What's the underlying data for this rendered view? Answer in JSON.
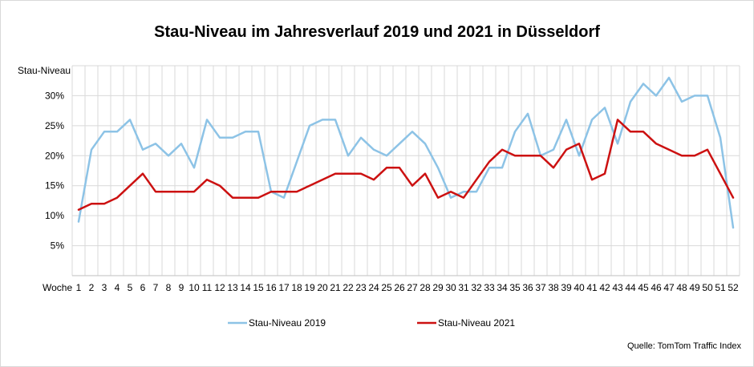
{
  "chart_data": {
    "type": "line",
    "title": "Stau-Niveau im Jahresverlauf 2019 und 2021 in Düsseldorf",
    "ylabel": "Stau-Niveau",
    "xlabel": "Woche",
    "x": [
      1,
      2,
      3,
      4,
      5,
      6,
      7,
      8,
      9,
      10,
      11,
      12,
      13,
      14,
      15,
      16,
      17,
      18,
      19,
      20,
      21,
      22,
      23,
      24,
      25,
      26,
      27,
      28,
      29,
      30,
      31,
      32,
      33,
      34,
      35,
      36,
      37,
      38,
      39,
      40,
      41,
      42,
      43,
      44,
      45,
      46,
      47,
      48,
      49,
      50,
      51,
      52
    ],
    "ylim": [
      0,
      35
    ],
    "yticks": [
      5,
      10,
      15,
      20,
      25,
      30
    ],
    "ytick_labels": [
      "5%",
      "10%",
      "15%",
      "20%",
      "25%",
      "30%"
    ],
    "grid": true,
    "legend": "bottom",
    "series": [
      {
        "name": "Stau-Niveau 2019",
        "color": "#8dc3e6",
        "values": [
          9,
          21,
          24,
          24,
          26,
          21,
          22,
          20,
          22,
          18,
          26,
          23,
          23,
          24,
          24,
          14,
          13,
          19,
          25,
          26,
          26,
          20,
          23,
          21,
          20,
          22,
          24,
          22,
          18,
          13,
          14,
          14,
          18,
          18,
          24,
          27,
          20,
          21,
          26,
          20,
          26,
          28,
          22,
          29,
          32,
          30,
          33,
          29,
          30,
          30,
          23,
          8
        ]
      },
      {
        "name": "Stau-Niveau 2021",
        "color": "#cc1111",
        "values": [
          11,
          12,
          12,
          13,
          15,
          17,
          14,
          14,
          14,
          14,
          16,
          15,
          13,
          13,
          13,
          14,
          14,
          14,
          15,
          16,
          17,
          17,
          17,
          16,
          18,
          18,
          15,
          17,
          13,
          14,
          13,
          16,
          19,
          21,
          20,
          20,
          20,
          18,
          21,
          22,
          16,
          17,
          26,
          24,
          24,
          22,
          21,
          20,
          20,
          21,
          17,
          13
        ]
      }
    ],
    "source": "Quelle: TomTom Traffic Index"
  }
}
